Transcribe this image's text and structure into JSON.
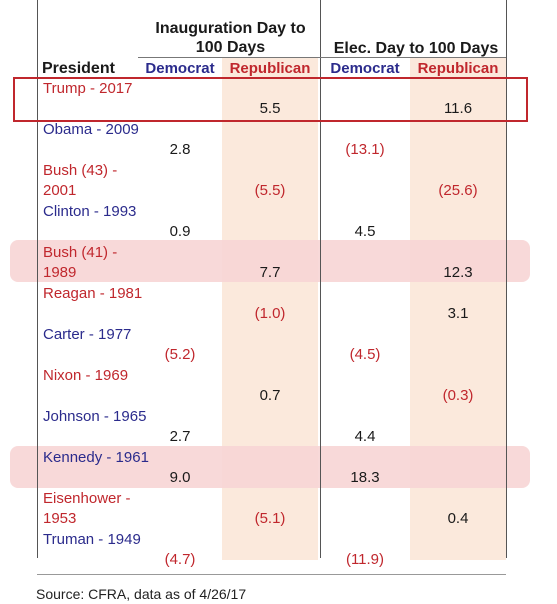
{
  "header": {
    "president_label": "President",
    "group1_title": "Inauguration Day to 100 Days",
    "group2_title": "Elec. Day to 100 Days",
    "democrat_label": "Democrat",
    "republican_label": "Republican"
  },
  "rows": [
    {
      "name": "Trump - 2017",
      "party": "R",
      "inaug_dem": "",
      "inaug_rep": "5.5",
      "elec_dem": "",
      "elec_rep": "11.6",
      "highlight": "box"
    },
    {
      "name": "Obama - 2009",
      "party": "D",
      "inaug_dem": "2.8",
      "inaug_rep": "",
      "elec_dem": "(13.1)",
      "elec_rep": "",
      "highlight": ""
    },
    {
      "name": "Bush (43) - 2001",
      "party": "R",
      "inaug_dem": "",
      "inaug_rep": "(5.5)",
      "elec_dem": "",
      "elec_rep": "(25.6)",
      "highlight": ""
    },
    {
      "name": "Clinton - 1993",
      "party": "D",
      "inaug_dem": "0.9",
      "inaug_rep": "",
      "elec_dem": "4.5",
      "elec_rep": "",
      "highlight": ""
    },
    {
      "name": "Bush (41) - 1989",
      "party": "R",
      "inaug_dem": "",
      "inaug_rep": "7.7",
      "elec_dem": "",
      "elec_rep": "12.3",
      "highlight": "band"
    },
    {
      "name": "Reagan - 1981",
      "party": "R",
      "inaug_dem": "",
      "inaug_rep": "(1.0)",
      "elec_dem": "",
      "elec_rep": "3.1",
      "highlight": ""
    },
    {
      "name": "Carter - 1977",
      "party": "D",
      "inaug_dem": "(5.2)",
      "inaug_rep": "",
      "elec_dem": "(4.5)",
      "elec_rep": "",
      "highlight": ""
    },
    {
      "name": "Nixon - 1969",
      "party": "R",
      "inaug_dem": "",
      "inaug_rep": "0.7",
      "elec_dem": "",
      "elec_rep": "(0.3)",
      "highlight": ""
    },
    {
      "name": "Johnson - 1965",
      "party": "D",
      "inaug_dem": "2.7",
      "inaug_rep": "",
      "elec_dem": "4.4",
      "elec_rep": "",
      "highlight": ""
    },
    {
      "name": "Kennedy - 1961",
      "party": "D",
      "inaug_dem": "9.0",
      "inaug_rep": "",
      "elec_dem": "18.3",
      "elec_rep": "",
      "highlight": "band"
    },
    {
      "name": "Eisenhower - 1953",
      "party": "R",
      "inaug_dem": "",
      "inaug_rep": "(5.1)",
      "elec_dem": "",
      "elec_rep": "0.4",
      "highlight": ""
    },
    {
      "name": "Truman - 1949",
      "party": "D",
      "inaug_dem": "(4.7)",
      "inaug_rep": "",
      "elec_dem": "(11.9)",
      "elec_rep": "",
      "highlight": ""
    }
  ],
  "source": "Source: CFRA, data as of 4/26/17"
}
